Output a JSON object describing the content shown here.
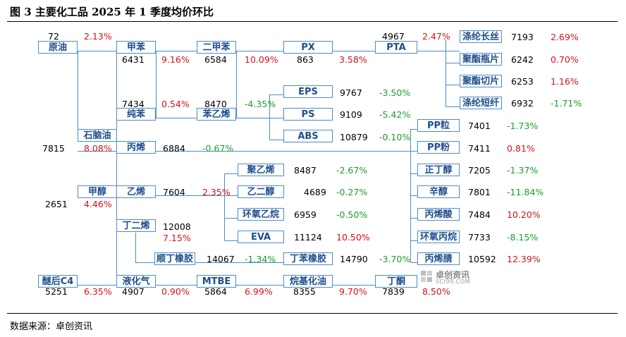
{
  "title": "图 3 主要化工品 2025 年 1 季度均价环比",
  "source": "数据来源：卓创资讯",
  "watermark": {
    "name": "卓创资讯",
    "url": "SCI99.COM"
  },
  "colors": {
    "line": "#4a8ec9",
    "box_text": "#1f4e8c",
    "up": "#d6121b",
    "down": "#1aa02c"
  },
  "nodes": {
    "crude": {
      "label": "原油",
      "value": "72",
      "change": "2.13%"
    },
    "naphtha": {
      "label": "石脑油",
      "value": "7815",
      "change": "8.08%"
    },
    "methanol": {
      "label": "甲醇",
      "value": "2651",
      "change": "4.46%"
    },
    "c4": {
      "label": "醚后C4",
      "value": "5251",
      "change": "6.35%"
    },
    "toluene": {
      "label": "甲苯",
      "value": "6431",
      "change": "9.16%"
    },
    "xylene": {
      "label": "二甲苯",
      "value": "6584",
      "change": "10.09%"
    },
    "px": {
      "label": "PX",
      "value": "863",
      "change": "3.58%"
    },
    "pta": {
      "label": "PTA",
      "value": "4967",
      "change": "2.47%"
    },
    "benzene": {
      "label": "纯苯",
      "value": "7434",
      "change": "0.54%"
    },
    "styrene": {
      "label": "苯乙烯",
      "value": "8470",
      "change": "-4.35%"
    },
    "eps": {
      "label": "EPS",
      "value": "9767",
      "change": "-3.50%"
    },
    "ps": {
      "label": "PS",
      "value": "9109",
      "change": "-5.42%"
    },
    "abs": {
      "label": "ABS",
      "value": "10879",
      "change": "-0.10%"
    },
    "propylene": {
      "label": "丙烯",
      "value": "6884",
      "change": "-0.67%"
    },
    "ethylene": {
      "label": "乙烯",
      "value": "7604",
      "change": "2.35%"
    },
    "butadiene": {
      "label": "丁二烯",
      "value": "12008",
      "change": "7.15%"
    },
    "br": {
      "label": "顺丁橡胶",
      "value": "14067",
      "change": "-1.34%"
    },
    "pe": {
      "label": "聚乙烯",
      "value": "8487",
      "change": "-2.67%"
    },
    "meg": {
      "label": "乙二醇",
      "value": "4689",
      "change": "-0.27%"
    },
    "eo": {
      "label": "环氧乙烷",
      "value": "6959",
      "change": "-0.50%"
    },
    "eva": {
      "label": "EVA",
      "value": "11124",
      "change": "10.50%"
    },
    "sbr": {
      "label": "丁苯橡胶",
      "value": "14790",
      "change": "-3.70%"
    },
    "lpg": {
      "label": "液化气",
      "value": "4907",
      "change": "0.90%"
    },
    "mtbe": {
      "label": "MTBE",
      "value": "5864",
      "change": "6.99%"
    },
    "alkylate": {
      "label": "烷基化油",
      "value": "8355",
      "change": "9.70%"
    },
    "butanone": {
      "label": "丁酮",
      "value": "7839",
      "change": "8.50%"
    },
    "pfy": {
      "label": "涤纶长丝",
      "value": "7193",
      "change": "2.69%"
    },
    "bottle": {
      "label": "聚酯瓶片",
      "value": "6242",
      "change": "0.70%"
    },
    "chip": {
      "label": "聚酯切片",
      "value": "6253",
      "change": "1.16%"
    },
    "psf": {
      "label": "涤纶短纤",
      "value": "6932",
      "change": "-1.71%"
    },
    "pp_pellet": {
      "label": "PP粒",
      "value": "7401",
      "change": "-1.73%"
    },
    "pp_powder": {
      "label": "PP粉",
      "value": "7411",
      "change": "0.81%"
    },
    "nba": {
      "label": "正丁醇",
      "value": "7205",
      "change": "-1.37%"
    },
    "octanol": {
      "label": "辛醇",
      "value": "7801",
      "change": "-11.84%"
    },
    "aa": {
      "label": "丙烯酸",
      "value": "7484",
      "change": "10.20%"
    },
    "po": {
      "label": "环氧丙烷",
      "value": "7733",
      "change": "-8.15%"
    },
    "an": {
      "label": "丙烯腈",
      "value": "10592",
      "change": "12.39%"
    }
  }
}
